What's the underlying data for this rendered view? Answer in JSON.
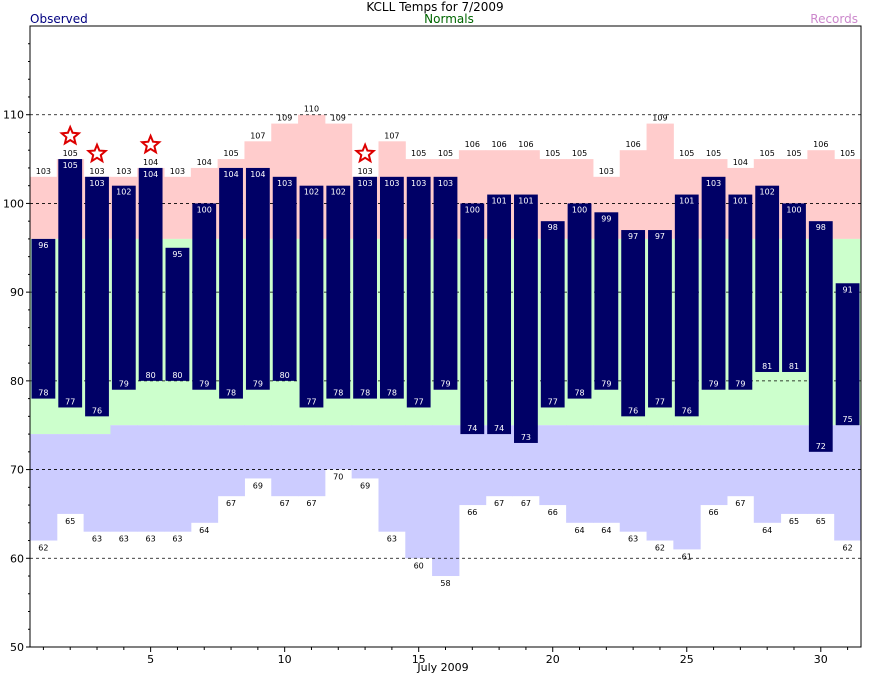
{
  "title": "KCLL Temps for 7/2009",
  "legend": {
    "observed": "Observed",
    "normals": "Normals",
    "records": "Records"
  },
  "colors": {
    "observed": "#000066",
    "normal_band": "#ccffcc",
    "record_high_band": "#ffcccc",
    "record_low_band": "#ccccff",
    "record_star": "#dd0000",
    "legend_observed": "#000080",
    "legend_normals": "#006600",
    "legend_records": "#cc88cc"
  },
  "chart_data": {
    "type": "bar",
    "xlabel": "July 2009",
    "ylabel": "",
    "ylim": [
      50,
      120
    ],
    "yticks": [
      50,
      60,
      70,
      80,
      90,
      100,
      110
    ],
    "xticks": [
      5,
      10,
      15,
      20,
      25,
      30
    ],
    "gridlines": [
      60,
      70,
      80,
      90,
      100,
      110
    ],
    "days": [
      1,
      2,
      3,
      4,
      5,
      6,
      7,
      8,
      9,
      10,
      11,
      12,
      13,
      14,
      15,
      16,
      17,
      18,
      19,
      20,
      21,
      22,
      23,
      24,
      25,
      26,
      27,
      28,
      29,
      30,
      31
    ],
    "observed_high": [
      96,
      105,
      103,
      102,
      104,
      95,
      100,
      104,
      104,
      103,
      102,
      102,
      103,
      103,
      103,
      103,
      100,
      101,
      101,
      98,
      100,
      99,
      97,
      97,
      101,
      103,
      101,
      102,
      100,
      98,
      91
    ],
    "observed_low": [
      78,
      77,
      76,
      79,
      80,
      80,
      79,
      78,
      79,
      80,
      77,
      78,
      78,
      78,
      77,
      79,
      74,
      74,
      73,
      77,
      78,
      79,
      76,
      77,
      76,
      79,
      79,
      81,
      81,
      72,
      75
    ],
    "record_high": [
      103,
      105,
      103,
      103,
      104,
      103,
      104,
      105,
      107,
      109,
      110,
      109,
      103,
      107,
      105,
      105,
      106,
      106,
      106,
      105,
      105,
      103,
      106,
      109,
      105,
      105,
      104,
      105,
      105,
      106,
      105
    ],
    "record_low": [
      62,
      65,
      63,
      63,
      63,
      63,
      64,
      67,
      69,
      67,
      67,
      70,
      69,
      63,
      60,
      58,
      66,
      67,
      67,
      66,
      64,
      64,
      63,
      62,
      61,
      66,
      67,
      64,
      65,
      65,
      62
    ],
    "normal_high": [
      96,
      96,
      96,
      96,
      96,
      96,
      96,
      96,
      96,
      96,
      96,
      96,
      96,
      96,
      96,
      96,
      96,
      96,
      96,
      96,
      96,
      96,
      96,
      96,
      96,
      96,
      96,
      96,
      96,
      96,
      96
    ],
    "normal_low": [
      74,
      74,
      74,
      75,
      75,
      75,
      75,
      75,
      75,
      75,
      75,
      75,
      75,
      75,
      75,
      75,
      75,
      75,
      75,
      75,
      75,
      75,
      75,
      75,
      75,
      75,
      75,
      75,
      75,
      75,
      75
    ],
    "record_set_days": [
      2,
      3,
      5,
      13
    ]
  }
}
